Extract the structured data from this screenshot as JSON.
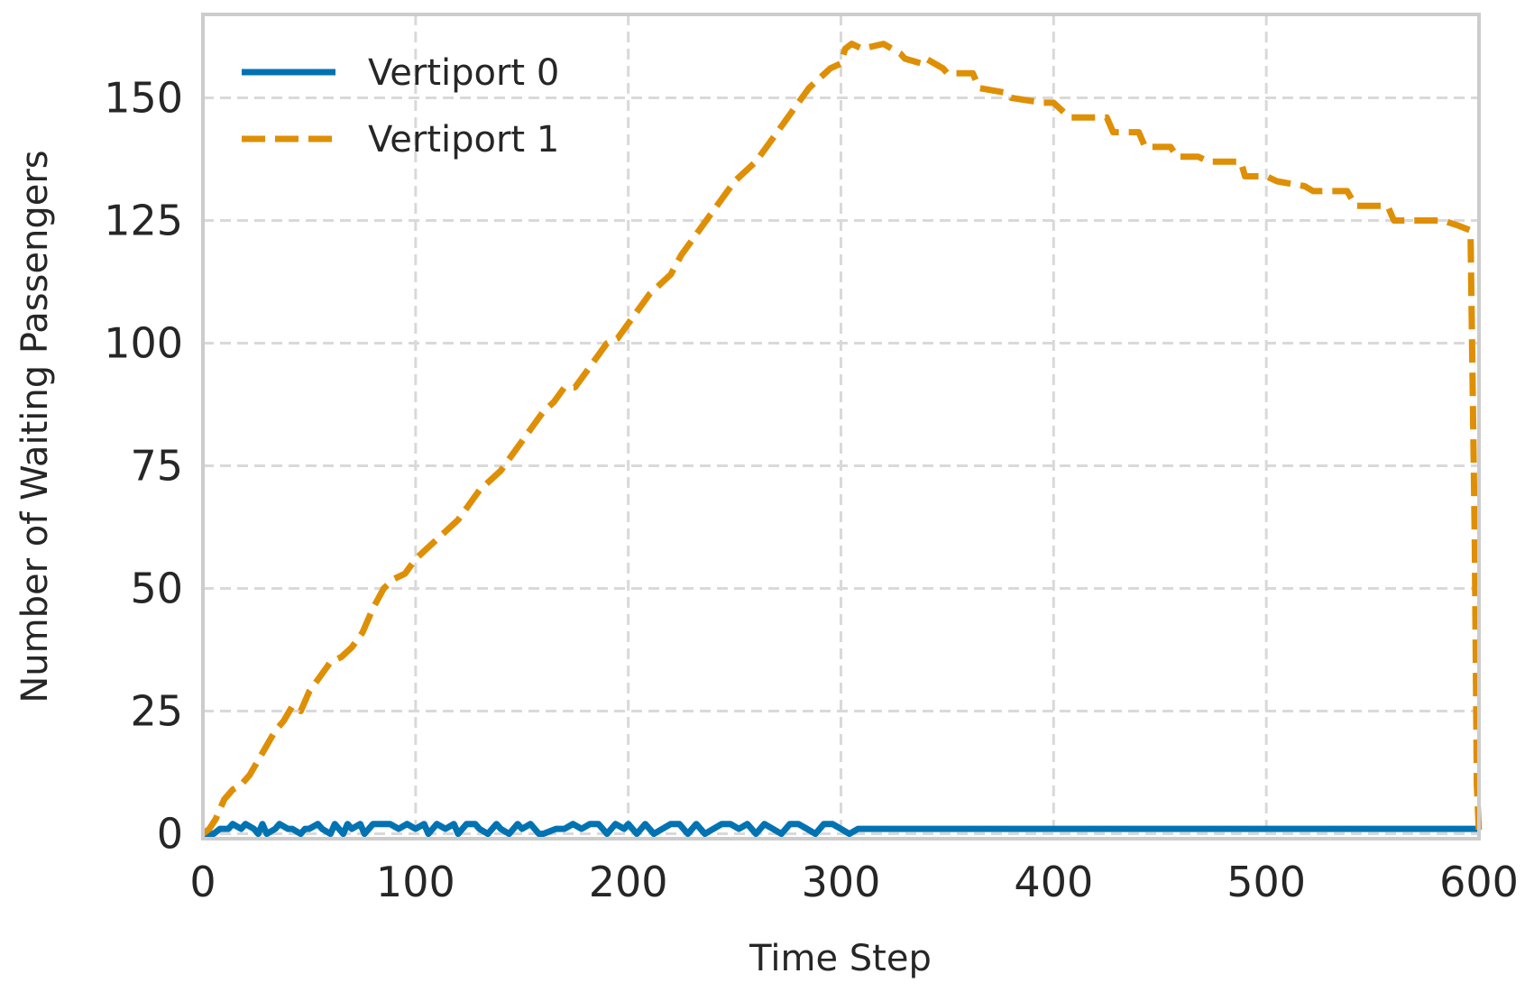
{
  "chart_data": {
    "type": "line",
    "title": "",
    "xlabel": "Time Step",
    "ylabel": "Number of Waiting Passengers",
    "xlim": [
      0,
      600
    ],
    "ylim": [
      -1,
      167
    ],
    "xticks": [
      0,
      100,
      200,
      300,
      400,
      500,
      600
    ],
    "yticks": [
      0,
      25,
      50,
      75,
      100,
      125,
      150
    ],
    "grid": true,
    "legend_position": "top-left",
    "series": [
      {
        "name": "Vertiport 0",
        "color": "#0173b2",
        "line_style": "solid",
        "x": [
          0,
          5,
          8,
          12,
          14,
          18,
          20,
          24,
          26,
          28,
          30,
          34,
          36,
          40,
          42,
          46,
          48,
          50,
          54,
          56,
          60,
          62,
          66,
          68,
          70,
          74,
          76,
          80,
          84,
          88,
          92,
          96,
          100,
          104,
          106,
          110,
          114,
          118,
          120,
          124,
          128,
          130,
          134,
          138,
          140,
          144,
          148,
          150,
          154,
          158,
          160,
          166,
          170,
          174,
          178,
          182,
          186,
          190,
          194,
          198,
          200,
          204,
          208,
          212,
          216,
          220,
          224,
          228,
          232,
          236,
          240,
          244,
          248,
          252,
          256,
          260,
          264,
          268,
          272,
          276,
          280,
          284,
          288,
          292,
          296,
          300,
          304,
          308,
          310,
          350,
          400,
          450,
          500,
          550,
          600
        ],
        "y": [
          0,
          0,
          1,
          1,
          2,
          1,
          2,
          1,
          0,
          2,
          0,
          1,
          2,
          1,
          1,
          0,
          1,
          1,
          2,
          1,
          0,
          2,
          0,
          2,
          1,
          2,
          0,
          2,
          2,
          2,
          1,
          2,
          1,
          2,
          0,
          2,
          1,
          2,
          0,
          2,
          2,
          1,
          0,
          2,
          1,
          0,
          2,
          1,
          2,
          0,
          0,
          1,
          1,
          2,
          1,
          2,
          2,
          0,
          2,
          1,
          2,
          0,
          2,
          0,
          1,
          2,
          2,
          0,
          2,
          0,
          1,
          2,
          2,
          1,
          2,
          0,
          2,
          1,
          0,
          2,
          2,
          1,
          0,
          2,
          2,
          1,
          0,
          1,
          1,
          1,
          1,
          1,
          1,
          1,
          1
        ]
      },
      {
        "name": "Vertiport 1",
        "color": "#de8f05",
        "line_style": "dashed",
        "x": [
          0,
          3,
          6,
          10,
          14,
          18,
          22,
          26,
          30,
          34,
          38,
          42,
          46,
          50,
          55,
          60,
          65,
          70,
          75,
          80,
          85,
          90,
          95,
          100,
          105,
          110,
          115,
          120,
          125,
          130,
          135,
          140,
          145,
          150,
          155,
          160,
          165,
          170,
          175,
          180,
          185,
          190,
          195,
          200,
          205,
          210,
          215,
          220,
          225,
          230,
          235,
          240,
          245,
          250,
          255,
          260,
          265,
          270,
          275,
          280,
          285,
          290,
          295,
          300,
          302,
          305,
          310,
          320,
          328,
          330,
          338,
          340,
          348,
          350,
          362,
          365,
          378,
          380,
          395,
          400,
          405,
          408,
          425,
          428,
          440,
          443,
          455,
          458,
          468,
          473,
          488,
          490,
          500,
          505,
          518,
          522,
          538,
          542,
          557,
          560,
          583,
          590,
          596,
          598,
          599,
          600
        ],
        "y": [
          0,
          1,
          3,
          7,
          9,
          10,
          12,
          15,
          18,
          21,
          23,
          26,
          25,
          29,
          32,
          35,
          36,
          38,
          41,
          46,
          50,
          52,
          53,
          56,
          58,
          60,
          62,
          64,
          67,
          70,
          72,
          74,
          77,
          80,
          83,
          86,
          88,
          91,
          91,
          94,
          97,
          100,
          101,
          104,
          107,
          110,
          112,
          114,
          118,
          121,
          124,
          127,
          130,
          133,
          135,
          137,
          140,
          143,
          146,
          149,
          152,
          154,
          156,
          157,
          160,
          161,
          160,
          161,
          159,
          158,
          157,
          158,
          156,
          155,
          155,
          152,
          151,
          150,
          149,
          149,
          147,
          146,
          146,
          143,
          143,
          140,
          140,
          138,
          138,
          137,
          137,
          134,
          134,
          133,
          132,
          131,
          131,
          128,
          128,
          125,
          125,
          124,
          123,
          60,
          10,
          0
        ]
      }
    ]
  }
}
